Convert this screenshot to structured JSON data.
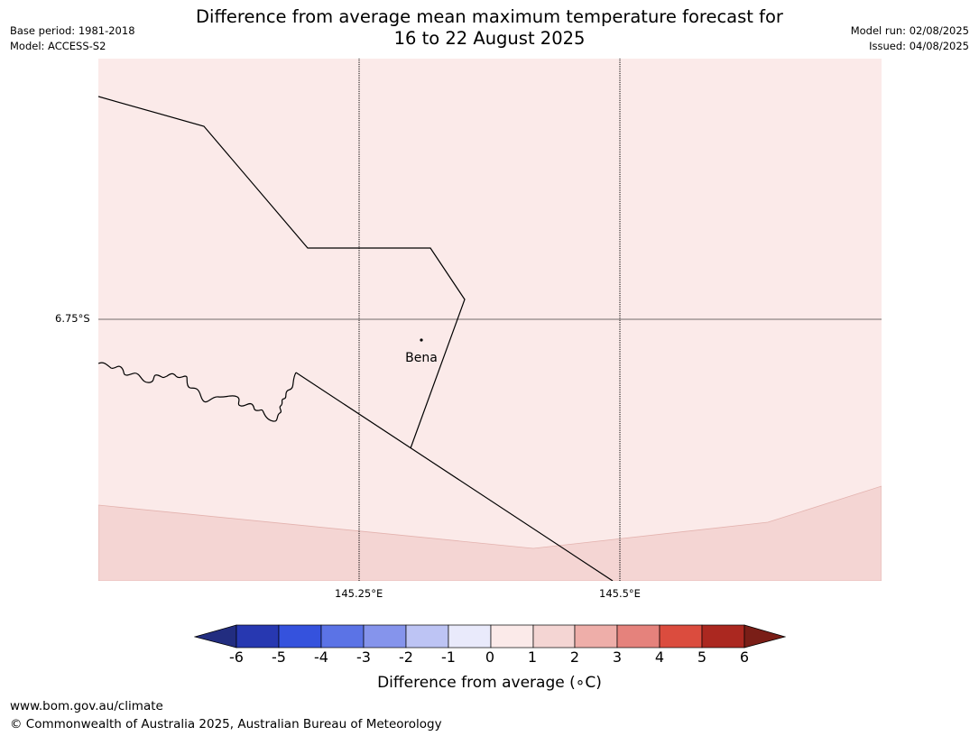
{
  "title": {
    "line1": "Difference from average mean maximum temperature forecast for",
    "line2": "16 to 22 August 2025"
  },
  "meta_left": {
    "base_period": "Base period: 1981-2018",
    "model": "Model: ACCESS-S2"
  },
  "meta_right": {
    "model_run": "Model run: 02/08/2025",
    "issued": "Issued: 04/08/2025"
  },
  "map": {
    "lat_labels": [
      "6.75°S"
    ],
    "lon_labels": [
      "145.25°E",
      "145.5°E"
    ],
    "place_label": "Bena",
    "colors": {
      "band_0_to_1": "#fbeae9",
      "band_1_to_2": "#f4d5d3",
      "boundary": "#000000",
      "gridline": "#000000"
    }
  },
  "colorbar": {
    "ticks": [
      "-6",
      "-5",
      "-4",
      "-3",
      "-2",
      "-1",
      "0",
      "1",
      "2",
      "3",
      "4",
      "5",
      "6"
    ],
    "colors": [
      "#222d80",
      "#2738b1",
      "#3552dd",
      "#5b73e6",
      "#8594ec",
      "#bdc4f4",
      "#e9eafb",
      "#fbeae9",
      "#f4d5d3",
      "#eeaea9",
      "#e5827c",
      "#db4c3e",
      "#ab2820",
      "#7a1e17"
    ],
    "label": "Difference from average (∘C)"
  },
  "footer": {
    "url": "www.bom.gov.au/climate",
    "copyright": "© Commonwealth of Australia 2025, Australian Bureau of Meteorology"
  }
}
